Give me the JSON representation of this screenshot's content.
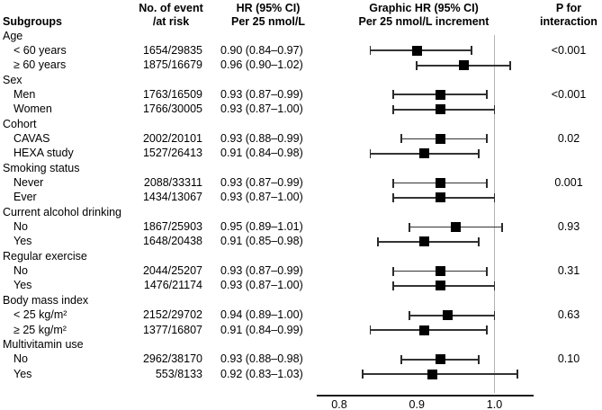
{
  "chart_data": {
    "type": "forest",
    "columns": {
      "subgroups": "Subgroups",
      "events_l1": "No. of event",
      "events_l2": "/at risk",
      "hr_l1": "HR (95% CI)",
      "hr_l2": "Per 25 nmol/L",
      "graphic_l1": "Graphic HR (95% CI)",
      "graphic_l2": "Per 25 nmol/L increment",
      "p_l1": "P for",
      "p_l2": "interaction"
    },
    "x_axis": {
      "ticks": [
        0.8,
        0.9,
        1.0
      ],
      "tick_labels": [
        "0.8",
        "0.9",
        "1.0"
      ],
      "range": [
        0.77,
        1.05
      ],
      "reference_line": 1.0,
      "grid": false
    },
    "rows": [
      {
        "kind": "group",
        "label": "Age"
      },
      {
        "kind": "item",
        "label": "< 60 years",
        "events": "1654/29835",
        "hr_text": "0.90 (0.84–0.97)",
        "hr": 0.9,
        "ci_low": 0.84,
        "ci_high": 0.97,
        "p_interaction": "<0.001"
      },
      {
        "kind": "item",
        "label": "≥ 60 years",
        "events": "1875/16679",
        "hr_text": "0.96 (0.90–1.02)",
        "hr": 0.96,
        "ci_low": 0.9,
        "ci_high": 1.02
      },
      {
        "kind": "group",
        "label": "Sex"
      },
      {
        "kind": "item",
        "label": "Men",
        "events": "1763/16509",
        "hr_text": "0.93 (0.87–0.99)",
        "hr": 0.93,
        "ci_low": 0.87,
        "ci_high": 0.99,
        "p_interaction": "<0.001"
      },
      {
        "kind": "item",
        "label": "Women",
        "events": "1766/30005",
        "hr_text": "0.93 (0.87–1.00)",
        "hr": 0.93,
        "ci_low": 0.87,
        "ci_high": 1.0
      },
      {
        "kind": "group",
        "label": "Cohort"
      },
      {
        "kind": "item",
        "label": "CAVAS",
        "events": "2002/20101",
        "hr_text": "0.93 (0.88–0.99)",
        "hr": 0.93,
        "ci_low": 0.88,
        "ci_high": 0.99,
        "p_interaction": "0.02"
      },
      {
        "kind": "item",
        "label": "HEXA study",
        "events": "1527/26413",
        "hr_text": "0.91 (0.84–0.98)",
        "hr": 0.91,
        "ci_low": 0.84,
        "ci_high": 0.98
      },
      {
        "kind": "group",
        "label": "Smoking status"
      },
      {
        "kind": "item",
        "label": "Never",
        "events": "2088/33311",
        "hr_text": "0.93 (0.87–0.99)",
        "hr": 0.93,
        "ci_low": 0.87,
        "ci_high": 0.99,
        "p_interaction": "0.001"
      },
      {
        "kind": "item",
        "label": "Ever",
        "events": "1434/13067",
        "hr_text": "0.93 (0.87–1.00)",
        "hr": 0.93,
        "ci_low": 0.87,
        "ci_high": 1.0
      },
      {
        "kind": "group",
        "label": "Current alcohol drinking"
      },
      {
        "kind": "item",
        "label": "No",
        "events": "1867/25903",
        "hr_text": "0.95 (0.89–1.01)",
        "hr": 0.95,
        "ci_low": 0.89,
        "ci_high": 1.01,
        "p_interaction": "0.93"
      },
      {
        "kind": "item",
        "label": "Yes",
        "events": "1648/20438",
        "hr_text": "0.91 (0.85–0.98)",
        "hr": 0.91,
        "ci_low": 0.85,
        "ci_high": 0.98
      },
      {
        "kind": "group",
        "label": "Regular exercise"
      },
      {
        "kind": "item",
        "label": "No",
        "events": "2044/25207",
        "hr_text": "0.93 (0.87–0.99)",
        "hr": 0.93,
        "ci_low": 0.87,
        "ci_high": 0.99,
        "p_interaction": "0.31"
      },
      {
        "kind": "item",
        "label": "Yes",
        "events": "1476/21174",
        "hr_text": "0.93 (0.87–1.00)",
        "hr": 0.93,
        "ci_low": 0.87,
        "ci_high": 1.0
      },
      {
        "kind": "group",
        "label": "Body mass index"
      },
      {
        "kind": "item",
        "label": "< 25 kg/m²",
        "events": "2152/29702",
        "hr_text": "0.94 (0.89–1.00)",
        "hr": 0.94,
        "ci_low": 0.89,
        "ci_high": 1.0,
        "p_interaction": "0.63"
      },
      {
        "kind": "item",
        "label": "≥ 25 kg/m²",
        "events": "1377/16807",
        "hr_text": "0.91 (0.84–0.99)",
        "hr": 0.91,
        "ci_low": 0.84,
        "ci_high": 0.99
      },
      {
        "kind": "group",
        "label": "Multivitamin use"
      },
      {
        "kind": "item",
        "label": "No",
        "events": "2962/38170",
        "hr_text": "0.93 (0.88–0.98)",
        "hr": 0.93,
        "ci_low": 0.88,
        "ci_high": 0.98,
        "p_interaction": "0.10"
      },
      {
        "kind": "item",
        "label": "Yes",
        "events": "553/8133",
        "hr_text": "0.92 (0.83–1.03)",
        "hr": 0.92,
        "ci_low": 0.83,
        "ci_high": 1.03
      }
    ],
    "colors": {
      "marker": "#000000",
      "ci_line": "#333333",
      "reference_line": "#b3b3b3",
      "axis_line": "#1a1a1a",
      "text": "#000000",
      "background": "#ffffff"
    },
    "legend": null
  }
}
